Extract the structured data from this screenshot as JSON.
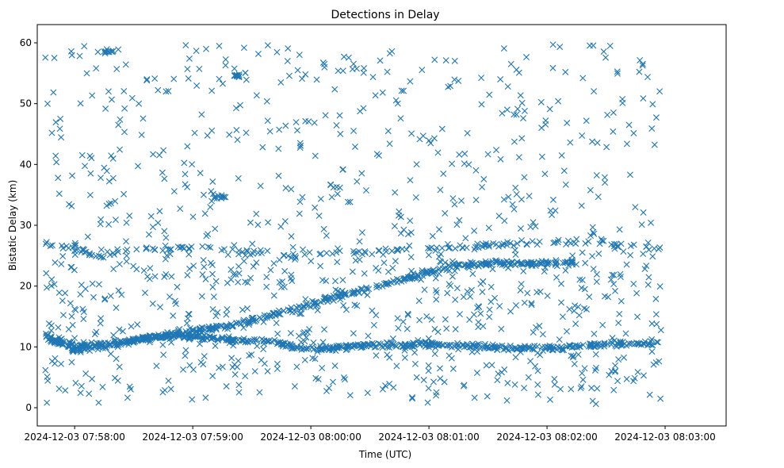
{
  "chart_data": {
    "type": "scatter",
    "title": "Detections in Delay",
    "xlabel": "Time (UTC)",
    "ylabel": "Bistatic Delay (km)",
    "x_unit": "seconds since 2024-12-03 07:58:00",
    "xlim": [
      -19,
      331
    ],
    "ylim": [
      -3,
      63
    ],
    "x_ticks": [
      {
        "value": 0,
        "label": "2024-12-03 07:58:00"
      },
      {
        "value": 60,
        "label": "2024-12-03 07:59:00"
      },
      {
        "value": 120,
        "label": "2024-12-03 08:00:00"
      },
      {
        "value": 180,
        "label": "2024-12-03 08:01:00"
      },
      {
        "value": 240,
        "label": "2024-12-03 08:02:00"
      },
      {
        "value": 300,
        "label": "2024-12-03 08:03:00"
      }
    ],
    "y_ticks": [
      0,
      10,
      20,
      30,
      40,
      50,
      60
    ],
    "marker": "x",
    "color": "#1f77b4",
    "tracks": [
      {
        "name": "rising track",
        "x": [
          -15,
          0,
          20,
          40,
          60,
          80,
          100,
          120,
          140,
          160,
          180,
          195,
          205,
          220,
          240,
          255
        ],
        "y": [
          11.8,
          10.2,
          10.5,
          11.8,
          12.5,
          13.5,
          15.2,
          17,
          18.8,
          20.5,
          22.3,
          23.3,
          23.6,
          23.8,
          23.8,
          23.9
        ]
      },
      {
        "name": "lower track",
        "x": [
          -15,
          0,
          20,
          40,
          60,
          80,
          100,
          120,
          140,
          160,
          180,
          200,
          220,
          240,
          260,
          280,
          298
        ],
        "y": [
          11.5,
          9.5,
          10.4,
          11.5,
          11.8,
          11.2,
          10.8,
          9.5,
          10.2,
          10.2,
          10.4,
          10.2,
          9.8,
          9.8,
          10.2,
          10.6,
          10.6
        ]
      },
      {
        "name": "upper track",
        "x": [
          -15,
          0,
          15,
          25,
          40,
          60,
          80,
          100,
          110,
          260,
          275,
          298
        ],
        "y": [
          27,
          26.5,
          24.5,
          26.5,
          26,
          26.3,
          26,
          25.5,
          25,
          27.5,
          27,
          26.2
        ]
      }
    ],
    "clusters": [
      {
        "x": [
          70,
          78
        ],
        "y": 34.6
      },
      {
        "x": [
          80,
          84
        ],
        "y": 54.6
      },
      {
        "x": [
          10,
          20
        ],
        "y": 58.5
      }
    ]
  }
}
